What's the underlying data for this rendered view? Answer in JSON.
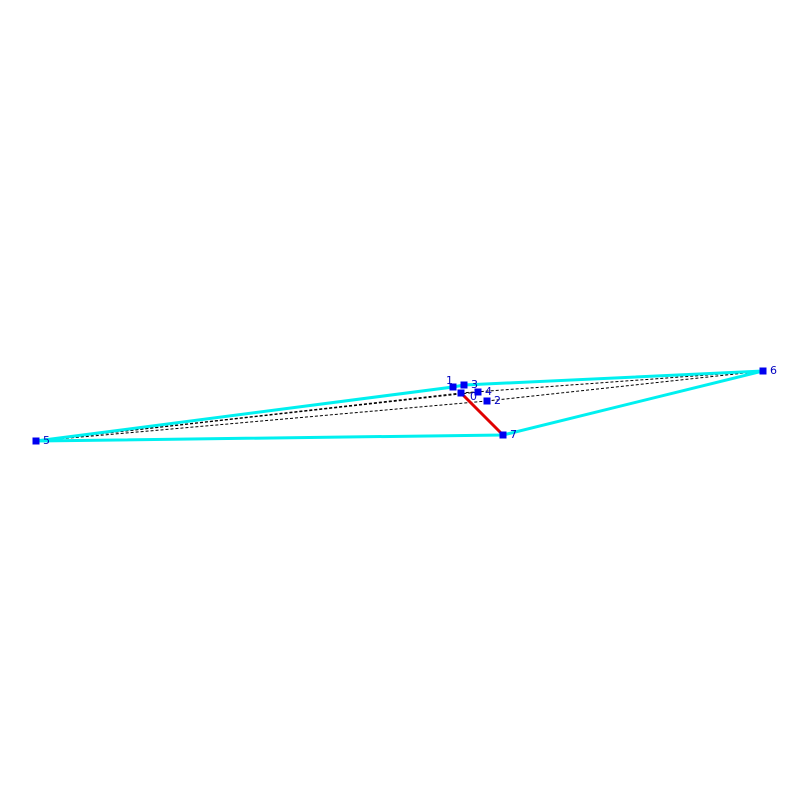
{
  "nodes": [
    {
      "label": "0"
    },
    {
      "label": "1"
    },
    {
      "label": "2"
    },
    {
      "label": "3"
    },
    {
      "label": "4"
    },
    {
      "label": "5"
    },
    {
      "label": "6"
    },
    {
      "label": "7"
    }
  ]
}
